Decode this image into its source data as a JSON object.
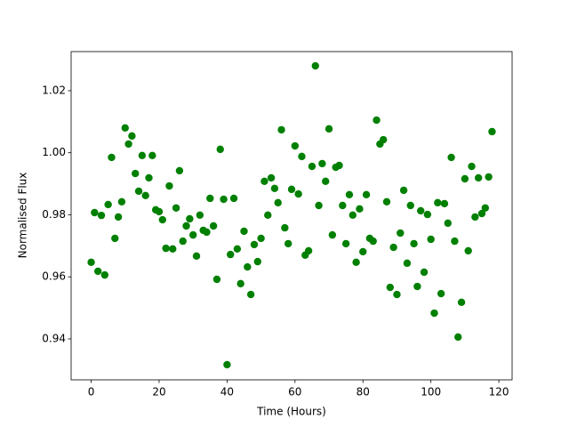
{
  "chart_data": {
    "type": "scatter",
    "x_label": "Time (Hours)",
    "y_label": "Normalised Flux",
    "color": "#008000",
    "x": [
      0,
      1,
      2,
      3,
      4,
      5,
      6,
      7,
      8,
      9,
      10,
      11,
      12,
      13,
      14,
      15,
      16,
      17,
      18,
      19,
      20,
      21,
      22,
      23,
      24,
      25,
      26,
      27,
      28,
      29,
      30,
      31,
      32,
      33,
      34,
      35,
      36,
      37,
      38,
      39,
      40,
      41,
      42,
      43,
      44,
      45,
      46,
      47,
      48,
      49,
      50,
      51,
      52,
      53,
      54,
      55,
      56,
      57,
      58,
      59,
      60,
      61,
      62,
      63,
      64,
      65,
      66,
      67,
      68,
      69,
      70,
      71,
      72,
      73,
      74,
      75,
      76,
      77,
      78,
      79,
      80,
      81,
      82,
      83,
      84,
      85,
      86,
      87,
      88,
      89,
      90,
      91,
      92,
      93,
      94,
      95,
      96,
      97,
      98,
      99,
      100,
      101,
      102,
      103,
      104,
      105,
      106,
      107,
      108,
      109,
      110,
      111,
      112,
      113,
      114,
      115,
      116,
      117,
      118
    ],
    "values": [
      0.9647,
      0.9807,
      0.9618,
      0.9798,
      0.9606,
      0.9833,
      0.9985,
      0.9724,
      0.9793,
      0.9842,
      1.008,
      1.0028,
      1.0054,
      0.9933,
      0.9876,
      0.9991,
      0.9862,
      0.9919,
      0.9991,
      0.9816,
      0.981,
      0.9784,
      0.9692,
      0.9893,
      0.969,
      0.9822,
      0.9942,
      0.9715,
      0.9764,
      0.9787,
      0.9735,
      0.9667,
      0.9799,
      0.975,
      0.9744,
      0.9853,
      0.9764,
      0.9592,
      1.0011,
      0.985,
      0.9317,
      0.9672,
      0.9853,
      0.969,
      0.9578,
      0.9747,
      0.9632,
      0.9543,
      0.9704,
      0.9649,
      0.9724,
      0.9908,
      0.9799,
      0.9919,
      0.9885,
      0.9839,
      1.0074,
      0.9758,
      0.9707,
      0.9882,
      1.0022,
      0.9867,
      0.9988,
      0.967,
      0.9684,
      0.9956,
      1.028,
      0.983,
      0.9965,
      0.9908,
      1.0077,
      0.9735,
      0.9953,
      0.9959,
      0.983,
      0.9707,
      0.9865,
      0.9799,
      0.9647,
      0.9819,
      0.9681,
      0.9865,
      0.9724,
      0.9715,
      1.0105,
      1.0028,
      1.0042,
      0.9842,
      0.9566,
      0.9695,
      0.9543,
      0.9741,
      0.9879,
      0.9644,
      0.983,
      0.9707,
      0.9569,
      0.9813,
      0.9615,
      0.9801,
      0.9721,
      0.9483,
      0.9839,
      0.9546,
      0.9836,
      0.9773,
      0.9985,
      0.9715,
      0.9406,
      0.9518,
      0.9916,
      0.9684,
      0.9956,
      0.9793,
      0.9919,
      0.9804,
      0.9822,
      0.9922,
      1.0068
    ],
    "xlim": [
      -5.9,
      123.9
    ],
    "ylim": [
      0.9268,
      1.0326
    ],
    "xticks": [
      0,
      20,
      40,
      60,
      80,
      100,
      120
    ],
    "yticks": [
      0.94,
      0.96,
      0.98,
      {
        "value": 1,
        "label": "1.00"
      },
      1.02
    ]
  }
}
